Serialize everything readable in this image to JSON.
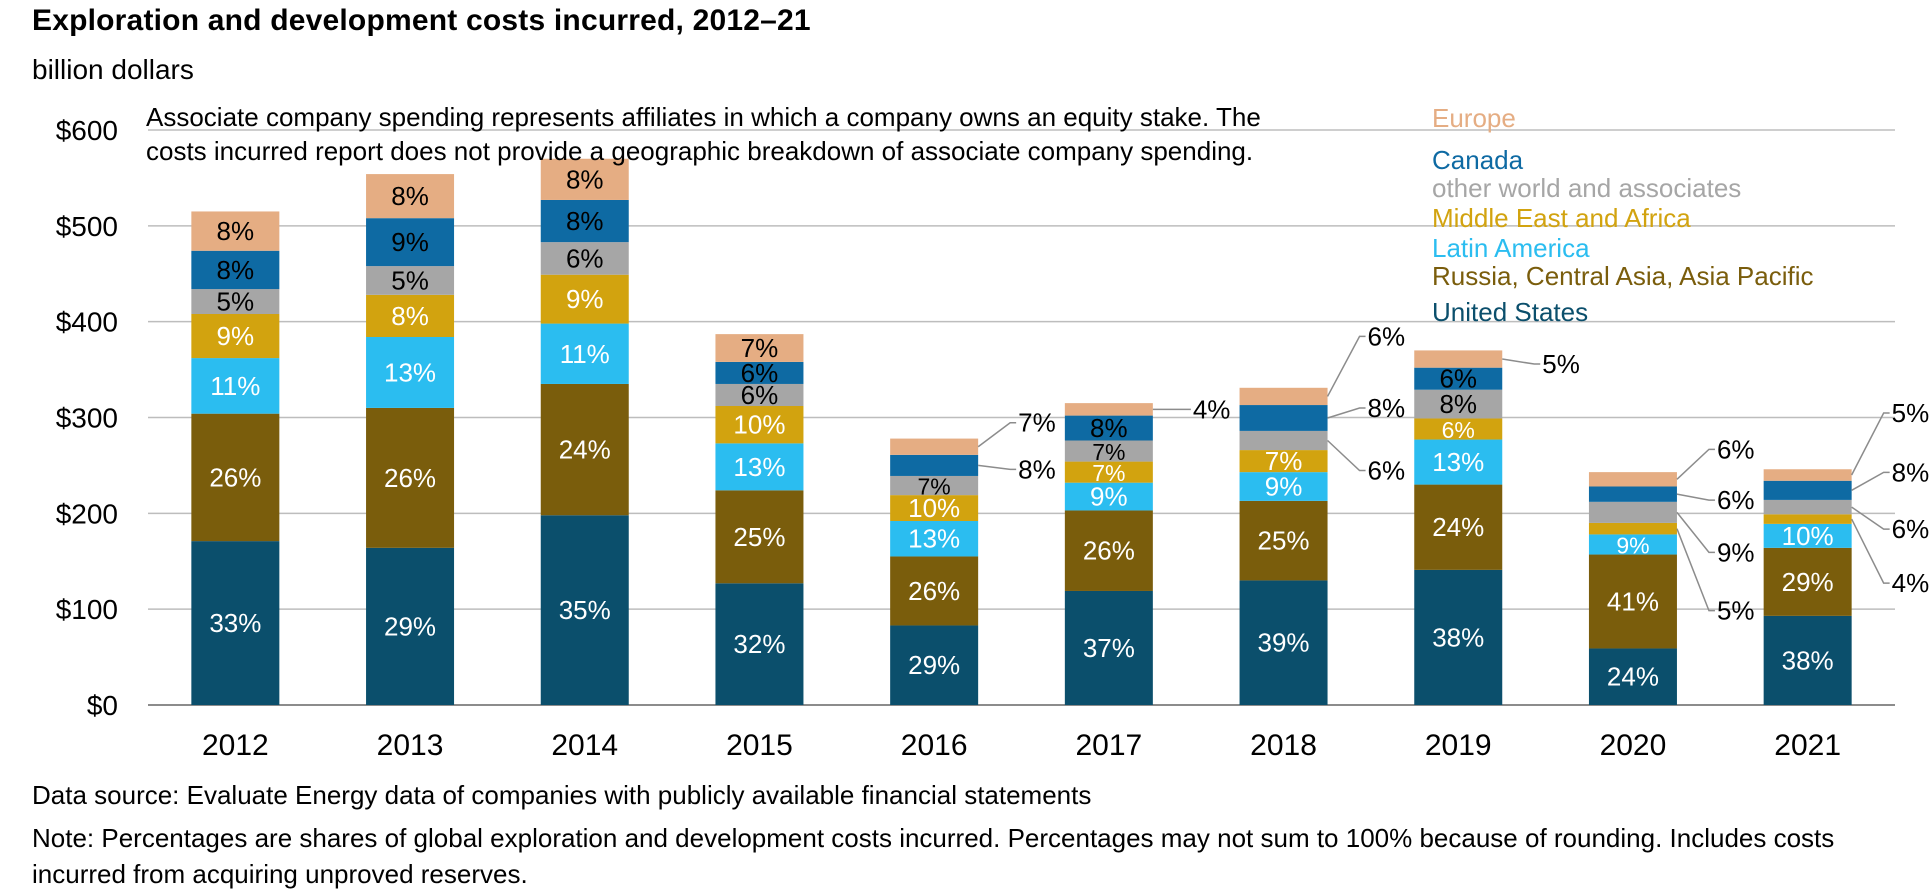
{
  "header": {
    "title": "Exploration and development costs incurred, 2012–21",
    "unit": "billion dollars"
  },
  "footer": {
    "source": "Data source: Evaluate Energy data of companies with publicly available financial statements",
    "note": "Note: Percentages are shares of global exploration and development costs incurred. Percentages may not sum to 100% because of rounding. Includes costs incurred from acquiring unproved reserves."
  },
  "chart_data": {
    "type": "bar",
    "stacked": true,
    "title": "Exploration and development costs incurred, 2012–21",
    "ylabel": "billion dollars",
    "ylim": [
      0,
      600
    ],
    "yticks": [
      0,
      100,
      200,
      300,
      400,
      500,
      600
    ],
    "ytick_labels": [
      "$0",
      "$100",
      "$200",
      "$300",
      "$400",
      "$500",
      "$600"
    ],
    "grid": true,
    "legend_position": "top-right",
    "annotation": "Associate company spending represents affiliates in which a company owns an equity stake. The costs incurred report does not provide a geographic breakdown of associate company spending.",
    "categories": [
      "2012",
      "2013",
      "2014",
      "2015",
      "2016",
      "2017",
      "2018",
      "2019",
      "2020",
      "2021"
    ],
    "series": [
      {
        "name": "United States",
        "color": "#0b4f6c",
        "values": [
          171,
          164,
          198,
          127,
          83,
          119,
          130,
          141,
          59,
          93
        ],
        "labels": [
          "33%",
          "29%",
          "35%",
          "32%",
          "29%",
          "37%",
          "39%",
          "38%",
          "24%",
          "38%"
        ],
        "label_color": "#ffffff"
      },
      {
        "name": "Russia, Central Asia, Asia Pacific",
        "color": "#7a5d0c",
        "values": [
          133,
          146,
          137,
          97,
          72,
          84,
          83,
          89,
          98,
          71
        ],
        "labels": [
          "26%",
          "26%",
          "24%",
          "25%",
          "26%",
          "26%",
          "25%",
          "24%",
          "41%",
          "29%"
        ],
        "label_color": "#ffffff"
      },
      {
        "name": "Latin America",
        "color": "#2bbdf0",
        "values": [
          58,
          74,
          63,
          49,
          37,
          29,
          30,
          47,
          21,
          25
        ],
        "labels": [
          "11%",
          "13%",
          "11%",
          "13%",
          "13%",
          "9%",
          "9%",
          "13%",
          "9%",
          "10%"
        ],
        "label_color": "#ffffff"
      },
      {
        "name": "Middle East and Africa",
        "color": "#d2a30f",
        "values": [
          46,
          44,
          51,
          39,
          27,
          22,
          23,
          22,
          12,
          10
        ],
        "labels": [
          "9%",
          "8%",
          "9%",
          "10%",
          "10%",
          "7%",
          "7%",
          "6%",
          "5%",
          "4%"
        ],
        "label_color": "#ffffff"
      },
      {
        "name": "other world and associates",
        "color": "#a6a6a6",
        "values": [
          26,
          30,
          34,
          23,
          20,
          22,
          20,
          30,
          22,
          15
        ],
        "labels": [
          "5%",
          "5%",
          "6%",
          "6%",
          "7%",
          "7%",
          "6%",
          "8%",
          "9%",
          "6%"
        ],
        "label_color": "#000000"
      },
      {
        "name": "Canada",
        "color": "#0e6aa3",
        "values": [
          40,
          50,
          44,
          23,
          22,
          26,
          27,
          23,
          16,
          20
        ],
        "labels": [
          "8%",
          "9%",
          "8%",
          "6%",
          "8%",
          "8%",
          "8%",
          "6%",
          "6%",
          "8%"
        ],
        "label_color": "#000000"
      },
      {
        "name": "Europe",
        "color": "#e5ad83",
        "values": [
          41,
          46,
          43,
          29,
          17,
          13,
          18,
          18,
          15,
          12
        ],
        "labels": [
          "8%",
          "8%",
          "8%",
          "7%",
          "7%",
          "4%",
          "6%",
          "5%",
          "6%",
          "5%"
        ],
        "label_color": "#000000"
      }
    ]
  }
}
